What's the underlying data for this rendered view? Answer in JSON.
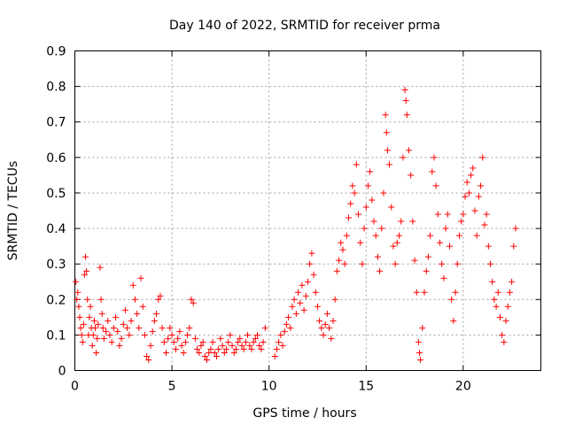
{
  "chart_data": {
    "type": "scatter",
    "title": "Day 140 of 2022, SRMTID for receiver prma",
    "xlabel": "GPS time / hours",
    "ylabel": "SRMTID / TECUs",
    "xlim": [
      0,
      24
    ],
    "ylim": [
      0,
      0.9
    ],
    "grid": true,
    "marker": "+",
    "color": "#ff0000",
    "x_ticks": [
      0,
      5,
      10,
      15,
      20
    ],
    "x_tick_labels": [
      "0",
      "5",
      "10",
      "15",
      "20"
    ],
    "y_ticks": [
      0,
      0.1,
      0.2,
      0.3,
      0.4,
      0.5,
      0.6,
      0.7,
      0.8,
      0.9
    ],
    "y_tick_labels": [
      "0",
      "0.1",
      "0.2",
      "0.3",
      "0.4",
      "0.5",
      "0.6",
      "0.7",
      "0.8",
      "0.9"
    ],
    "series": [
      {
        "name": "prma",
        "points": [
          [
            0.05,
            0.25
          ],
          [
            0.1,
            0.2
          ],
          [
            0.15,
            0.22
          ],
          [
            0.2,
            0.18
          ],
          [
            0.25,
            0.15
          ],
          [
            0.3,
            0.12
          ],
          [
            0.35,
            0.1
          ],
          [
            0.4,
            0.08
          ],
          [
            0.45,
            0.13
          ],
          [
            0.5,
            0.27
          ],
          [
            0.55,
            0.32
          ],
          [
            0.6,
            0.28
          ],
          [
            0.65,
            0.2
          ],
          [
            0.7,
            0.1
          ],
          [
            0.75,
            0.15
          ],
          [
            0.8,
            0.18
          ],
          [
            0.85,
            0.12
          ],
          [
            0.9,
            0.07
          ],
          [
            0.95,
            0.1
          ],
          [
            1.0,
            0.14
          ],
          [
            1.05,
            0.12
          ],
          [
            1.1,
            0.05
          ],
          [
            1.15,
            0.09
          ],
          [
            1.2,
            0.13
          ],
          [
            1.3,
            0.29
          ],
          [
            1.35,
            0.2
          ],
          [
            1.4,
            0.16
          ],
          [
            1.45,
            0.12
          ],
          [
            1.5,
            0.09
          ],
          [
            1.6,
            0.11
          ],
          [
            1.7,
            0.14
          ],
          [
            1.8,
            0.1
          ],
          [
            1.9,
            0.08
          ],
          [
            2.0,
            0.12
          ],
          [
            2.1,
            0.15
          ],
          [
            2.2,
            0.11
          ],
          [
            2.3,
            0.07
          ],
          [
            2.4,
            0.09
          ],
          [
            2.5,
            0.13
          ],
          [
            2.6,
            0.17
          ],
          [
            2.7,
            0.12
          ],
          [
            2.8,
            0.1
          ],
          [
            2.9,
            0.14
          ],
          [
            3.0,
            0.24
          ],
          [
            3.1,
            0.2
          ],
          [
            3.2,
            0.16
          ],
          [
            3.3,
            0.12
          ],
          [
            3.4,
            0.26
          ],
          [
            3.5,
            0.18
          ],
          [
            3.6,
            0.1
          ],
          [
            3.7,
            0.04
          ],
          [
            3.8,
            0.03
          ],
          [
            3.9,
            0.07
          ],
          [
            4.0,
            0.11
          ],
          [
            4.1,
            0.14
          ],
          [
            4.2,
            0.16
          ],
          [
            4.3,
            0.2
          ],
          [
            4.4,
            0.21
          ],
          [
            4.5,
            0.12
          ],
          [
            4.6,
            0.08
          ],
          [
            4.7,
            0.05
          ],
          [
            4.8,
            0.09
          ],
          [
            4.9,
            0.12
          ],
          [
            5.0,
            0.1
          ],
          [
            5.1,
            0.08
          ],
          [
            5.2,
            0.06
          ],
          [
            5.3,
            0.09
          ],
          [
            5.4,
            0.11
          ],
          [
            5.5,
            0.07
          ],
          [
            5.6,
            0.05
          ],
          [
            5.7,
            0.08
          ],
          [
            5.8,
            0.1
          ],
          [
            5.9,
            0.12
          ],
          [
            6.0,
            0.2
          ],
          [
            6.1,
            0.19
          ],
          [
            6.2,
            0.09
          ],
          [
            6.3,
            0.06
          ],
          [
            6.4,
            0.05
          ],
          [
            6.5,
            0.07
          ],
          [
            6.6,
            0.08
          ],
          [
            6.7,
            0.04
          ],
          [
            6.8,
            0.03
          ],
          [
            6.9,
            0.05
          ],
          [
            7.0,
            0.06
          ],
          [
            7.1,
            0.08
          ],
          [
            7.2,
            0.05
          ],
          [
            7.3,
            0.04
          ],
          [
            7.4,
            0.06
          ],
          [
            7.5,
            0.09
          ],
          [
            7.6,
            0.07
          ],
          [
            7.7,
            0.05
          ],
          [
            7.8,
            0.06
          ],
          [
            7.9,
            0.08
          ],
          [
            8.0,
            0.1
          ],
          [
            8.1,
            0.07
          ],
          [
            8.2,
            0.05
          ],
          [
            8.3,
            0.06
          ],
          [
            8.4,
            0.08
          ],
          [
            8.5,
            0.09
          ],
          [
            8.6,
            0.07
          ],
          [
            8.7,
            0.06
          ],
          [
            8.8,
            0.08
          ],
          [
            8.9,
            0.1
          ],
          [
            9.0,
            0.07
          ],
          [
            9.1,
            0.06
          ],
          [
            9.2,
            0.08
          ],
          [
            9.3,
            0.09
          ],
          [
            9.4,
            0.1
          ],
          [
            9.5,
            0.07
          ],
          [
            9.6,
            0.06
          ],
          [
            9.7,
            0.08
          ],
          [
            9.8,
            0.12
          ],
          [
            10.3,
            0.04
          ],
          [
            10.4,
            0.06
          ],
          [
            10.5,
            0.08
          ],
          [
            10.6,
            0.1
          ],
          [
            10.7,
            0.07
          ],
          [
            10.8,
            0.11
          ],
          [
            10.9,
            0.13
          ],
          [
            11.0,
            0.15
          ],
          [
            11.1,
            0.12
          ],
          [
            11.2,
            0.18
          ],
          [
            11.3,
            0.2
          ],
          [
            11.4,
            0.16
          ],
          [
            11.5,
            0.22
          ],
          [
            11.6,
            0.19
          ],
          [
            11.7,
            0.24
          ],
          [
            11.8,
            0.17
          ],
          [
            11.9,
            0.21
          ],
          [
            12.0,
            0.25
          ],
          [
            12.1,
            0.3
          ],
          [
            12.2,
            0.33
          ],
          [
            12.3,
            0.27
          ],
          [
            12.4,
            0.22
          ],
          [
            12.5,
            0.18
          ],
          [
            12.6,
            0.14
          ],
          [
            12.7,
            0.12
          ],
          [
            12.8,
            0.1
          ],
          [
            12.9,
            0.13
          ],
          [
            13.0,
            0.16
          ],
          [
            13.1,
            0.12
          ],
          [
            13.2,
            0.09
          ],
          [
            13.3,
            0.14
          ],
          [
            13.4,
            0.2
          ],
          [
            13.5,
            0.28
          ],
          [
            13.6,
            0.31
          ],
          [
            13.7,
            0.36
          ],
          [
            13.8,
            0.34
          ],
          [
            13.9,
            0.3
          ],
          [
            14.0,
            0.38
          ],
          [
            14.1,
            0.43
          ],
          [
            14.2,
            0.47
          ],
          [
            14.3,
            0.52
          ],
          [
            14.4,
            0.5
          ],
          [
            14.5,
            0.58
          ],
          [
            14.6,
            0.44
          ],
          [
            14.7,
            0.36
          ],
          [
            14.8,
            0.3
          ],
          [
            14.9,
            0.4
          ],
          [
            15.0,
            0.46
          ],
          [
            15.1,
            0.52
          ],
          [
            15.2,
            0.56
          ],
          [
            15.3,
            0.48
          ],
          [
            15.4,
            0.42
          ],
          [
            15.5,
            0.38
          ],
          [
            15.6,
            0.32
          ],
          [
            15.7,
            0.28
          ],
          [
            15.8,
            0.4
          ],
          [
            15.9,
            0.5
          ],
          [
            16.0,
            0.72
          ],
          [
            16.05,
            0.67
          ],
          [
            16.1,
            0.62
          ],
          [
            16.2,
            0.58
          ],
          [
            16.3,
            0.46
          ],
          [
            16.4,
            0.35
          ],
          [
            16.5,
            0.3
          ],
          [
            16.6,
            0.36
          ],
          [
            16.7,
            0.38
          ],
          [
            16.8,
            0.42
          ],
          [
            16.9,
            0.6
          ],
          [
            17.0,
            0.79
          ],
          [
            17.05,
            0.76
          ],
          [
            17.1,
            0.72
          ],
          [
            17.2,
            0.62
          ],
          [
            17.3,
            0.55
          ],
          [
            17.4,
            0.42
          ],
          [
            17.5,
            0.31
          ],
          [
            17.6,
            0.22
          ],
          [
            17.7,
            0.08
          ],
          [
            17.75,
            0.05
          ],
          [
            17.8,
            0.03
          ],
          [
            17.9,
            0.12
          ],
          [
            18.0,
            0.22
          ],
          [
            18.1,
            0.28
          ],
          [
            18.2,
            0.32
          ],
          [
            18.3,
            0.38
          ],
          [
            18.4,
            0.56
          ],
          [
            18.5,
            0.6
          ],
          [
            18.6,
            0.52
          ],
          [
            18.7,
            0.44
          ],
          [
            18.8,
            0.36
          ],
          [
            18.9,
            0.3
          ],
          [
            19.0,
            0.26
          ],
          [
            19.1,
            0.4
          ],
          [
            19.2,
            0.44
          ],
          [
            19.3,
            0.35
          ],
          [
            19.4,
            0.2
          ],
          [
            19.5,
            0.14
          ],
          [
            19.6,
            0.22
          ],
          [
            19.7,
            0.3
          ],
          [
            19.8,
            0.38
          ],
          [
            19.9,
            0.42
          ],
          [
            20.0,
            0.44
          ],
          [
            20.1,
            0.49
          ],
          [
            20.2,
            0.53
          ],
          [
            20.3,
            0.5
          ],
          [
            20.4,
            0.55
          ],
          [
            20.5,
            0.57
          ],
          [
            20.6,
            0.45
          ],
          [
            20.7,
            0.38
          ],
          [
            20.8,
            0.49
          ],
          [
            20.9,
            0.52
          ],
          [
            21.0,
            0.6
          ],
          [
            21.1,
            0.41
          ],
          [
            21.2,
            0.44
          ],
          [
            21.3,
            0.35
          ],
          [
            21.4,
            0.3
          ],
          [
            21.5,
            0.25
          ],
          [
            21.6,
            0.2
          ],
          [
            21.7,
            0.18
          ],
          [
            21.8,
            0.22
          ],
          [
            21.9,
            0.15
          ],
          [
            22.0,
            0.1
          ],
          [
            22.1,
            0.08
          ],
          [
            22.2,
            0.14
          ],
          [
            22.3,
            0.18
          ],
          [
            22.4,
            0.22
          ],
          [
            22.5,
            0.25
          ],
          [
            22.6,
            0.35
          ],
          [
            22.7,
            0.4
          ]
        ]
      }
    ]
  }
}
